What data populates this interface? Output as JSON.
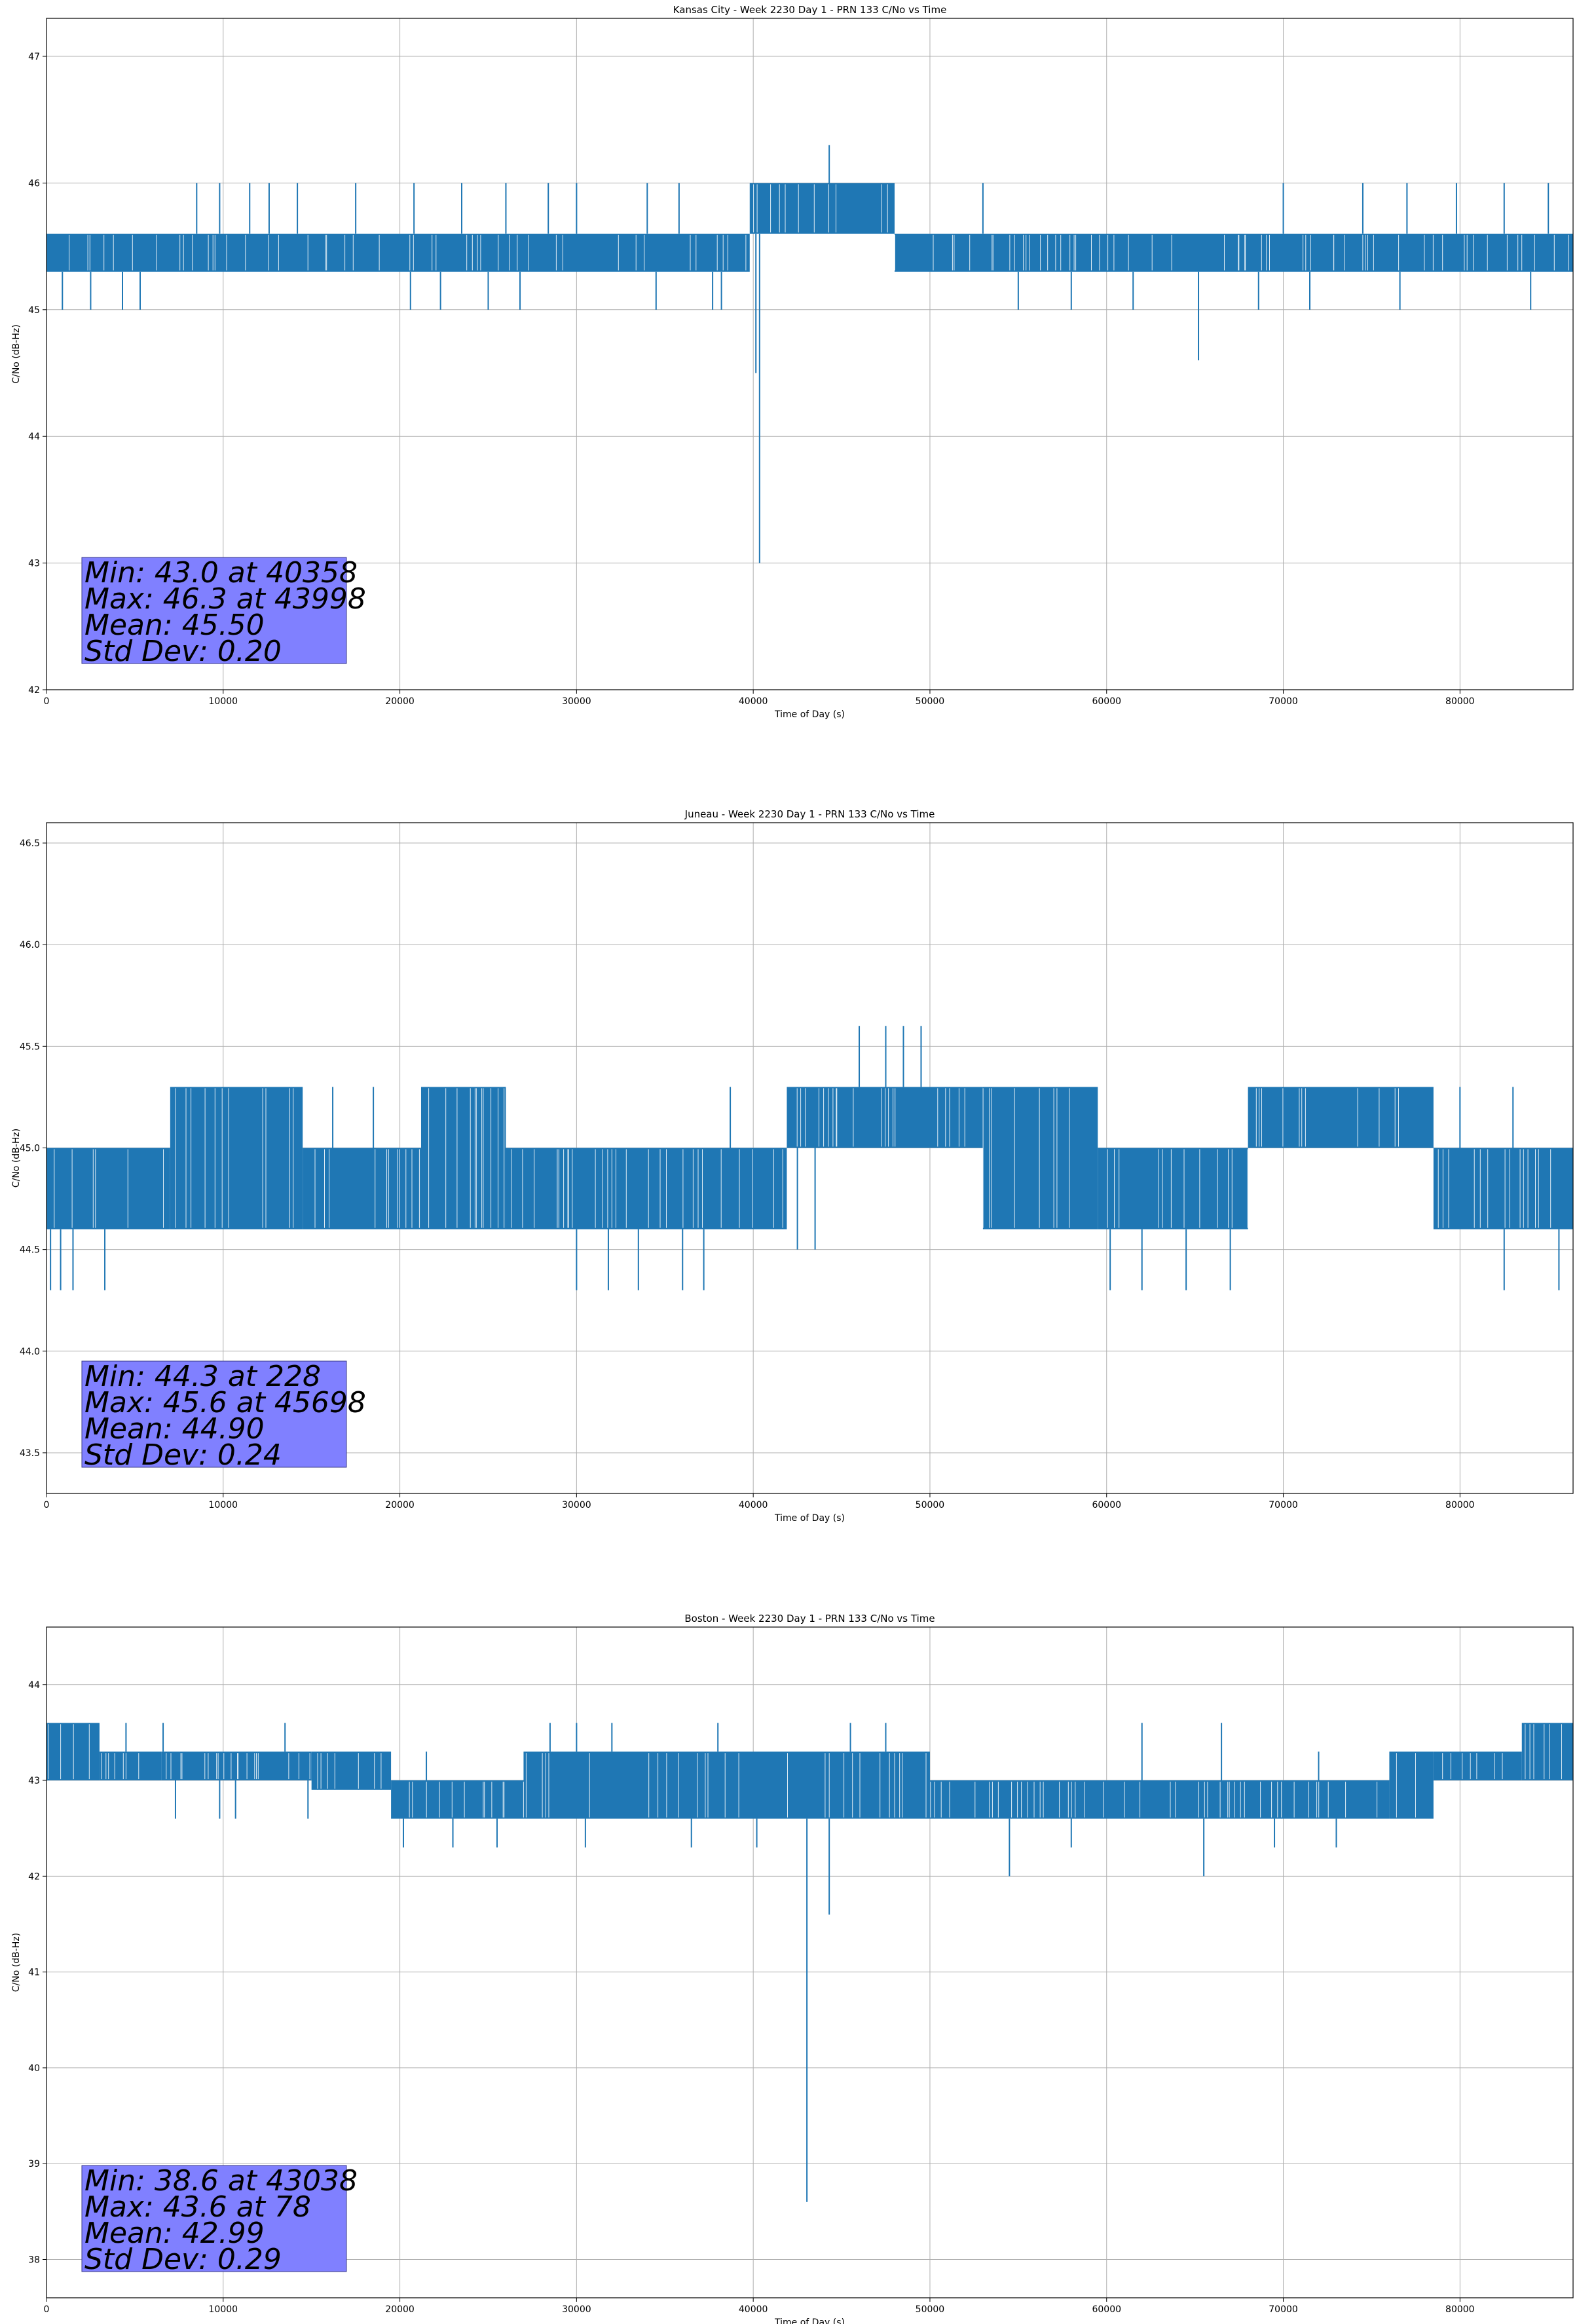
{
  "chart_data": [
    {
      "type": "line",
      "title": "Kansas City - Week 2230 Day 1 - PRN 133 C/No vs Time",
      "xlabel": "Time of Day (s)",
      "ylabel": "C/No (dB-Hz)",
      "xlim": [
        0,
        86400
      ],
      "ylim": [
        42,
        47.3
      ],
      "xticks": [
        0,
        10000,
        20000,
        30000,
        40000,
        50000,
        60000,
        70000,
        80000
      ],
      "yticks": [
        42,
        43,
        44,
        45,
        46,
        47
      ],
      "ytick_labels": [
        "42",
        "43",
        "44",
        "45",
        "46",
        "47"
      ],
      "grid": true,
      "color": "#1f77b4",
      "band_segments": [
        [
          0,
          39800,
          45.3,
          45.6
        ],
        [
          39800,
          48000,
          45.6,
          46.0
        ],
        [
          48000,
          86400,
          45.3,
          45.6
        ]
      ],
      "up_spikes": [
        [
          8500,
          46.0
        ],
        [
          9800,
          46.0
        ],
        [
          11500,
          46.0
        ],
        [
          12600,
          46.0
        ],
        [
          14200,
          46.0
        ],
        [
          17500,
          46.0
        ],
        [
          20800,
          46.0
        ],
        [
          23500,
          46.0
        ],
        [
          26000,
          46.0
        ],
        [
          28400,
          46.0
        ],
        [
          30000,
          46.0
        ],
        [
          34000,
          46.0
        ],
        [
          35800,
          46.0
        ],
        [
          44300,
          46.3
        ],
        [
          53000,
          46.0
        ],
        [
          70000,
          46.0
        ],
        [
          74500,
          46.0
        ],
        [
          77000,
          46.0
        ],
        [
          79800,
          46.0
        ],
        [
          82500,
          46.0
        ],
        [
          85000,
          46.0
        ]
      ],
      "down_spikes": [
        [
          900,
          45.0
        ],
        [
          2500,
          45.0
        ],
        [
          4300,
          45.0
        ],
        [
          5300,
          45.0
        ],
        [
          20600,
          45.0
        ],
        [
          22300,
          45.0
        ],
        [
          25000,
          45.0
        ],
        [
          26800,
          45.0
        ],
        [
          34500,
          45.0
        ],
        [
          37700,
          45.0
        ],
        [
          38200,
          45.0
        ],
        [
          40150,
          44.5
        ],
        [
          40358,
          43.0
        ],
        [
          55000,
          45.0
        ],
        [
          58000,
          45.0
        ],
        [
          61500,
          45.0
        ],
        [
          65200,
          44.6
        ],
        [
          68600,
          45.0
        ],
        [
          71500,
          45.0
        ],
        [
          76600,
          45.0
        ],
        [
          84000,
          45.0
        ]
      ],
      "stats": {
        "min_label": "Min: 43.0 at 40358",
        "max_label": "Max: 46.3 at 43998",
        "mean_label": "Mean: 45.50",
        "std_label": "Std Dev: 0.20",
        "min": 43.0,
        "min_time": 40358,
        "max": 46.3,
        "max_time": 43998,
        "mean": 45.5,
        "std_dev": 0.2
      }
    },
    {
      "type": "line",
      "title": "Juneau - Week 2230 Day 1 - PRN 133 C/No vs Time",
      "xlabel": "Time of Day (s)",
      "ylabel": "C/No (dB-Hz)",
      "xlim": [
        0,
        86400
      ],
      "ylim": [
        43.3,
        46.6
      ],
      "xticks": [
        0,
        10000,
        20000,
        30000,
        40000,
        50000,
        60000,
        70000,
        80000
      ],
      "yticks": [
        43.5,
        44.0,
        44.5,
        45.0,
        45.5,
        46.0,
        46.5
      ],
      "ytick_labels": [
        "43.5",
        "44.0",
        "44.5",
        "45.0",
        "45.5",
        "46.0",
        "46.5"
      ],
      "grid": true,
      "color": "#1f77b4",
      "band_segments": [
        [
          0,
          7000,
          44.6,
          45.0
        ],
        [
          7000,
          14500,
          44.6,
          45.3
        ],
        [
          14500,
          21200,
          44.6,
          45.0
        ],
        [
          21200,
          26000,
          44.6,
          45.3
        ],
        [
          26000,
          41900,
          44.6,
          45.0
        ],
        [
          41900,
          53000,
          45.0,
          45.3
        ],
        [
          53000,
          59500,
          44.6,
          45.3
        ],
        [
          59500,
          68000,
          44.6,
          45.0
        ],
        [
          68000,
          78500,
          45.0,
          45.3
        ],
        [
          78500,
          86400,
          44.6,
          45.0
        ]
      ],
      "up_spikes": [
        [
          5700,
          45.0
        ],
        [
          8200,
          45.3
        ],
        [
          16200,
          45.3
        ],
        [
          18500,
          45.3
        ],
        [
          30500,
          45.0
        ],
        [
          38700,
          45.3
        ],
        [
          46000,
          45.6
        ],
        [
          47500,
          45.6
        ],
        [
          48500,
          45.6
        ],
        [
          49500,
          45.6
        ],
        [
          57000,
          45.3
        ],
        [
          61000,
          45.0
        ],
        [
          64000,
          45.0
        ],
        [
          75000,
          45.3
        ],
        [
          80000,
          45.3
        ],
        [
          83000,
          45.3
        ]
      ],
      "down_spikes": [
        [
          228,
          44.3
        ],
        [
          800,
          44.3
        ],
        [
          1500,
          44.3
        ],
        [
          3300,
          44.3
        ],
        [
          30000,
          44.3
        ],
        [
          31800,
          44.3
        ],
        [
          33500,
          44.3
        ],
        [
          36000,
          44.3
        ],
        [
          37200,
          44.3
        ],
        [
          42500,
          44.5
        ],
        [
          43500,
          44.5
        ],
        [
          60200,
          44.3
        ],
        [
          62000,
          44.3
        ],
        [
          64500,
          44.3
        ],
        [
          67000,
          44.3
        ],
        [
          82500,
          44.3
        ],
        [
          85600,
          44.3
        ]
      ],
      "stats": {
        "min_label": "Min: 44.3 at 228",
        "max_label": "Max: 45.6 at 45698",
        "mean_label": "Mean: 44.90",
        "std_label": "Std Dev: 0.24",
        "min": 44.3,
        "min_time": 228,
        "max": 45.6,
        "max_time": 45698,
        "mean": 44.9,
        "std_dev": 0.24
      }
    },
    {
      "type": "line",
      "title": "Boston - Week 2230 Day 1 - PRN 133 C/No vs Time",
      "xlabel": "Time of Day (s)",
      "ylabel": "C/No (dB-Hz)",
      "xlim": [
        0,
        86400
      ],
      "ylim": [
        37.6,
        44.6
      ],
      "xticks": [
        0,
        10000,
        20000,
        30000,
        40000,
        50000,
        60000,
        70000,
        80000
      ],
      "yticks": [
        38,
        39,
        40,
        41,
        42,
        43,
        44
      ],
      "ytick_labels": [
        "38",
        "39",
        "40",
        "41",
        "42",
        "43",
        "44"
      ],
      "grid": true,
      "color": "#1f77b4",
      "band_segments": [
        [
          0,
          3000,
          43.0,
          43.6
        ],
        [
          3000,
          6500,
          43.0,
          43.3
        ],
        [
          6500,
          15000,
          43.0,
          43.3
        ],
        [
          15000,
          19500,
          42.9,
          43.3
        ],
        [
          19500,
          27000,
          42.6,
          43.0
        ],
        [
          27000,
          50000,
          42.6,
          43.3
        ],
        [
          50000,
          76000,
          42.6,
          43.0
        ],
        [
          76000,
          78500,
          42.6,
          43.3
        ],
        [
          78500,
          83500,
          43.0,
          43.3
        ],
        [
          83500,
          86400,
          43.0,
          43.6
        ]
      ],
      "up_spikes": [
        [
          500,
          43.6
        ],
        [
          4500,
          43.6
        ],
        [
          6600,
          43.6
        ],
        [
          13500,
          43.6
        ],
        [
          21500,
          43.3
        ],
        [
          28500,
          43.6
        ],
        [
          30000,
          43.6
        ],
        [
          32000,
          43.6
        ],
        [
          38000,
          43.6
        ],
        [
          45500,
          43.6
        ],
        [
          47500,
          43.6
        ],
        [
          62000,
          43.6
        ],
        [
          66500,
          43.6
        ],
        [
          72000,
          43.3
        ],
        [
          78000,
          43.3
        ]
      ],
      "down_spikes": [
        [
          7300,
          42.6
        ],
        [
          9800,
          42.6
        ],
        [
          10700,
          42.6
        ],
        [
          14800,
          42.6
        ],
        [
          20200,
          42.3
        ],
        [
          23000,
          42.3
        ],
        [
          25500,
          42.3
        ],
        [
          30500,
          42.3
        ],
        [
          36500,
          42.3
        ],
        [
          40200,
          42.3
        ],
        [
          43038,
          38.6
        ],
        [
          44300,
          41.6
        ],
        [
          54500,
          42.0
        ],
        [
          58000,
          42.3
        ],
        [
          65500,
          42.0
        ],
        [
          69500,
          42.3
        ],
        [
          73000,
          42.3
        ]
      ],
      "stats": {
        "min_label": "Min: 38.6 at 43038",
        "max_label": "Max: 43.6 at 78",
        "mean_label": "Mean: 42.99",
        "std_label": "Std Dev: 0.29",
        "min": 38.6,
        "min_time": 43038,
        "max": 43.6,
        "max_time": 78,
        "mean": 42.99,
        "std_dev": 0.29
      }
    }
  ]
}
